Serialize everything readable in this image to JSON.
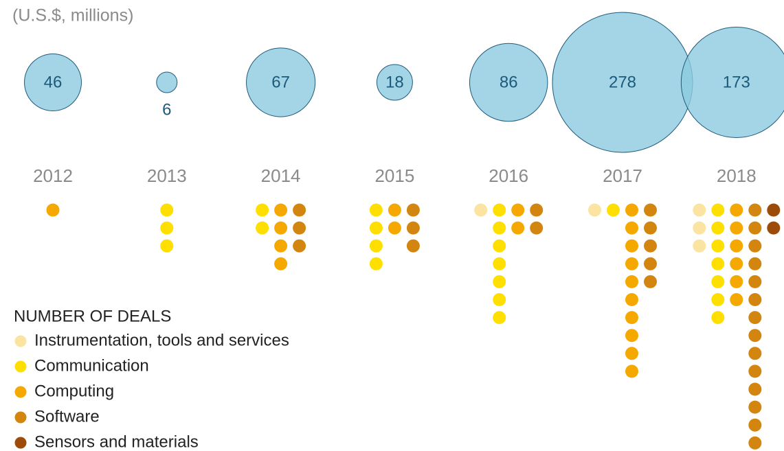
{
  "chart_data": {
    "type": "bubble",
    "subtitle": "(U.S.$, millions)",
    "categories": [
      "2012",
      "2013",
      "2014",
      "2015",
      "2016",
      "2017",
      "2018"
    ],
    "values": [
      46,
      6,
      67,
      18,
      86,
      278,
      173
    ],
    "color": "#8ccbe0",
    "legend_title": "NUMBER OF DEALS",
    "deals": [
      {
        "name": "Instrumentation, tools and services",
        "color": "#fbe4a2",
        "values": [
          0,
          0,
          0,
          0,
          1,
          1,
          3
        ]
      },
      {
        "name": "Communication",
        "color": "#ffdf00",
        "values": [
          0,
          3,
          2,
          4,
          7,
          1,
          7
        ]
      },
      {
        "name": "Computing",
        "color": "#f5a800",
        "values": [
          1,
          0,
          4,
          2,
          2,
          10,
          6
        ]
      },
      {
        "name": "Software",
        "color": "#d3860f",
        "values": [
          0,
          0,
          3,
          3,
          2,
          5,
          14
        ]
      },
      {
        "name": "Sensors and materials",
        "color": "#9c4c08",
        "values": [
          0,
          0,
          0,
          0,
          0,
          0,
          2
        ]
      }
    ]
  }
}
